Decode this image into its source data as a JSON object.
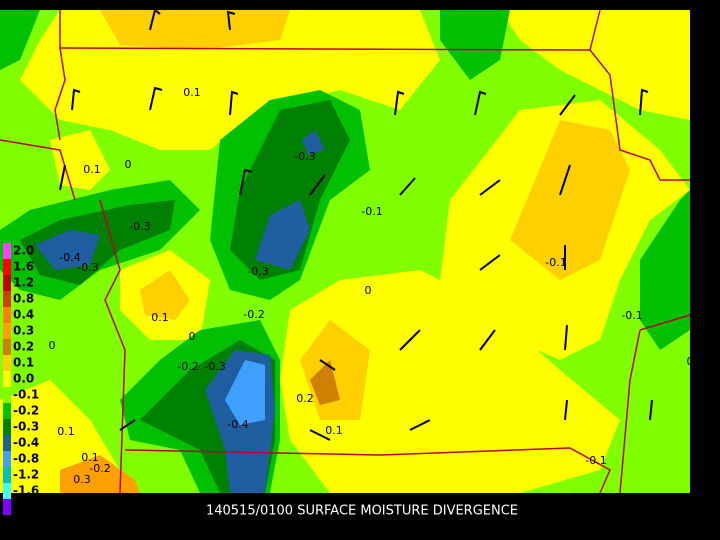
{
  "title": "140515/0100 SURFACE MOISTURE DIVERGENCE",
  "legend": [
    {
      "label": "2.0",
      "color": "#ff40ff"
    },
    {
      "label": "1.6",
      "color": "#ff0000"
    },
    {
      "label": "1.2",
      "color": "#c00000"
    },
    {
      "label": "0.8",
      "color": "#d04000"
    },
    {
      "label": "0.4",
      "color": "#ff8000"
    },
    {
      "label": "0.3",
      "color": "#ffa000"
    },
    {
      "label": "0.2",
      "color": "#d08000"
    },
    {
      "label": "0.1",
      "color": "#ffd000"
    },
    {
      "label": "0.0",
      "color": "#ffff00"
    },
    {
      "label": "-0.1",
      "color": "#80ff00"
    },
    {
      "label": "-0.2",
      "color": "#00c000"
    },
    {
      "label": "-0.3",
      "color": "#008000"
    },
    {
      "label": "-0.4",
      "color": "#1f5f9f"
    },
    {
      "label": "-0.8",
      "color": "#3fa0ff"
    },
    {
      "label": "-1.2",
      "color": "#00c0c0"
    },
    {
      "label": "-1.6",
      "color": "#40ffff"
    },
    {
      "label": "",
      "color": "#8000ff"
    }
  ],
  "contour_labels": [
    "0.1",
    "0.1",
    "0",
    "-0.3",
    "-0.1",
    "-0.3",
    "-0.4",
    "-0.3",
    "-0.3",
    "0",
    "-0.1",
    "0.1",
    "0",
    "-0.2",
    "-0.1",
    "0",
    "-0.2",
    "-0.3",
    "0",
    "0.2",
    "-0.4",
    "0.1",
    "0.1",
    "0.1",
    "-0.2",
    "-0.1",
    "0.3"
  ]
}
